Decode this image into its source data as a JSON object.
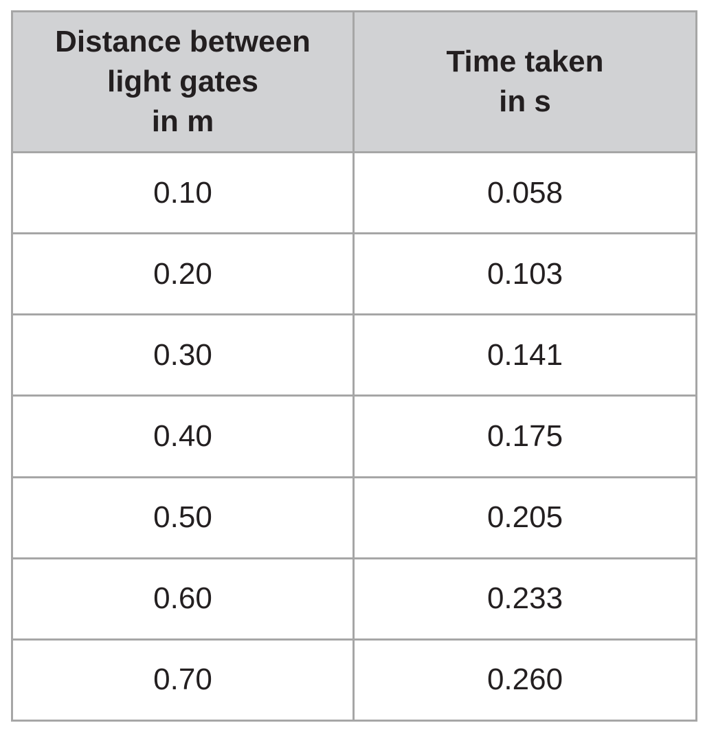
{
  "table": {
    "headers": [
      {
        "lines": [
          "Distance between",
          "light gates",
          "in m"
        ]
      },
      {
        "lines": [
          "Time taken",
          "in s"
        ]
      }
    ],
    "rows": [
      [
        "0.10",
        "0.058"
      ],
      [
        "0.20",
        "0.103"
      ],
      [
        "0.30",
        "0.141"
      ],
      [
        "0.40",
        "0.175"
      ],
      [
        "0.50",
        "0.205"
      ],
      [
        "0.60",
        "0.233"
      ],
      [
        "0.70",
        "0.260"
      ]
    ]
  }
}
